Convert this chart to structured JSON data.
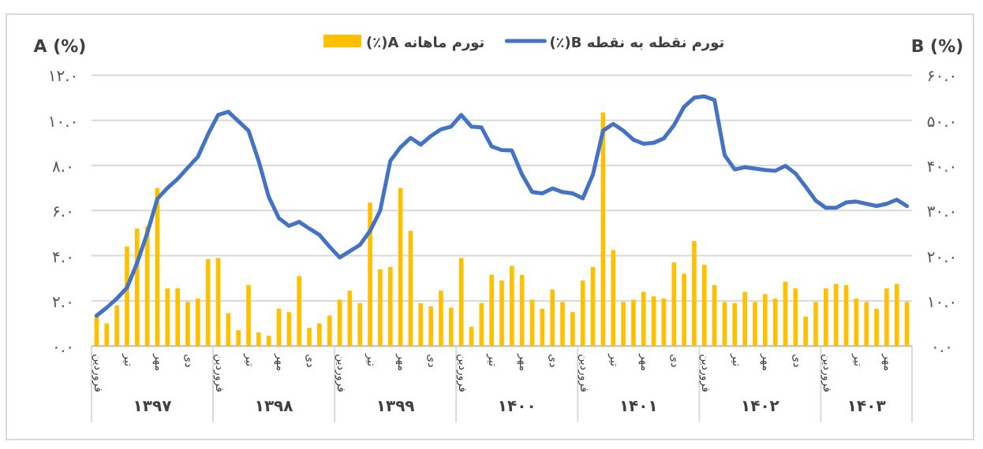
{
  "chart_data": {
    "type": "bar",
    "categories": [
      "فروردین",
      null,
      null,
      "تیر",
      null,
      null,
      "مهر",
      null,
      null,
      "دی",
      null,
      null,
      "فروردین",
      null,
      null,
      "تیر",
      null,
      null,
      "مهر",
      null,
      null,
      "دی",
      null,
      null,
      "فروردین",
      null,
      null,
      "تیر",
      null,
      null,
      "مهر",
      null,
      null,
      "دی",
      null,
      null,
      "فروردین",
      null,
      null,
      "تیر",
      null,
      null,
      "مهر",
      null,
      null,
      "دی",
      null,
      null,
      "فروردین",
      null,
      null,
      "تیر",
      null,
      null,
      "مهر",
      null,
      null,
      "دی",
      null,
      null,
      "فروردین",
      null,
      null,
      "تیر",
      null,
      null,
      "مهر",
      null,
      null,
      "دی",
      null,
      null,
      "فروردین",
      null,
      null,
      "تیر",
      null,
      null,
      "مهر",
      null,
      null
    ],
    "series": [
      {
        "name": "تورم ماهانه A(٪)",
        "color": "#ffc000",
        "values": [
          1.3,
          1.0,
          1.8,
          4.4,
          5.2,
          5.3,
          7.0,
          2.55,
          2.55,
          1.95,
          2.1,
          3.85,
          3.9,
          1.45,
          0.7,
          2.7,
          0.6,
          0.45,
          1.65,
          1.5,
          3.1,
          0.8,
          1.0,
          1.35,
          2.05,
          2.45,
          1.9,
          6.35,
          3.4,
          3.5,
          7.0,
          5.1,
          1.9,
          1.75,
          2.45,
          1.7,
          3.9,
          0.85,
          1.9,
          3.15,
          2.9,
          3.55,
          3.15,
          2.05,
          1.65,
          2.5,
          1.95,
          1.5,
          2.9,
          3.5,
          10.35,
          4.25,
          1.95,
          2.05,
          2.4,
          2.2,
          2.1,
          3.7,
          3.2,
          4.65,
          3.6,
          2.7,
          1.95,
          1.9,
          2.4,
          1.95,
          2.3,
          2.1,
          2.85,
          2.55,
          1.3,
          1.95,
          2.55,
          2.75,
          2.7,
          2.1,
          1.95,
          1.65,
          2.55,
          2.75,
          1.95
        ]
      },
      {
        "name": "تورم نقطه به نقطه B(٪)",
        "type": "line",
        "axis": "y2",
        "color": "#4472c4",
        "values": [
          6.7,
          8.5,
          10.5,
          12.9,
          18.4,
          25,
          32.6,
          35,
          37,
          39.5,
          41.9,
          46.9,
          51.2,
          51.9,
          49.8,
          47.7,
          41,
          33,
          28.3,
          26.6,
          27.5,
          26,
          24.6,
          22,
          19.6,
          21,
          22.4,
          25.5,
          30,
          41,
          44,
          46.1,
          44.6,
          46.5,
          48,
          48.6,
          51.2,
          48.6,
          48.4,
          44.2,
          43.4,
          43.3,
          38,
          34.1,
          33.8,
          34.9,
          34.1,
          33.8,
          32.7,
          38,
          47.7,
          49.2,
          47.7,
          45.7,
          44.8,
          45,
          46,
          48.9,
          53,
          55,
          55.3,
          54.5,
          42.3,
          39.1,
          39.6,
          39.3,
          39,
          38.8,
          39.9,
          38.2,
          35.3,
          32.2,
          30.6,
          30.6,
          31.8,
          32,
          31.5,
          31,
          31.5,
          32.4,
          31
        ]
      }
    ],
    "ylabel": "A (%)",
    "y2label": "B (%)",
    "ylim": [
      0,
      12
    ],
    "yticks": [
      {
        "value": 0,
        "label": "۰.۰"
      },
      {
        "value": 2,
        "label": "۲.۰"
      },
      {
        "value": 4,
        "label": "۴.۰"
      },
      {
        "value": 6,
        "label": "۶.۰"
      },
      {
        "value": 8,
        "label": "۸.۰"
      },
      {
        "value": 10,
        "label": "۱۰.۰"
      },
      {
        "value": 12,
        "label": "۱۲.۰"
      }
    ],
    "y2lim": [
      0,
      60
    ],
    "y2ticks": [
      {
        "value": 0,
        "label": "۰.۰"
      },
      {
        "value": 10,
        "label": "۱۰.۰"
      },
      {
        "value": 20,
        "label": "۲۰.۰"
      },
      {
        "value": 30,
        "label": "۳۰.۰"
      },
      {
        "value": 40,
        "label": "۴۰.۰"
      },
      {
        "value": 50,
        "label": "۵۰.۰"
      },
      {
        "value": 60,
        "label": "۶۰.۰"
      }
    ],
    "grid": "y",
    "legend": "top",
    "annotations": [
      "۱۳۹۷",
      "۱۳۹۸",
      "۱۳۹۹",
      "۱۴۰۰",
      "۱۴۰۱",
      "۱۴۰۲",
      "۱۴۰۳"
    ]
  }
}
